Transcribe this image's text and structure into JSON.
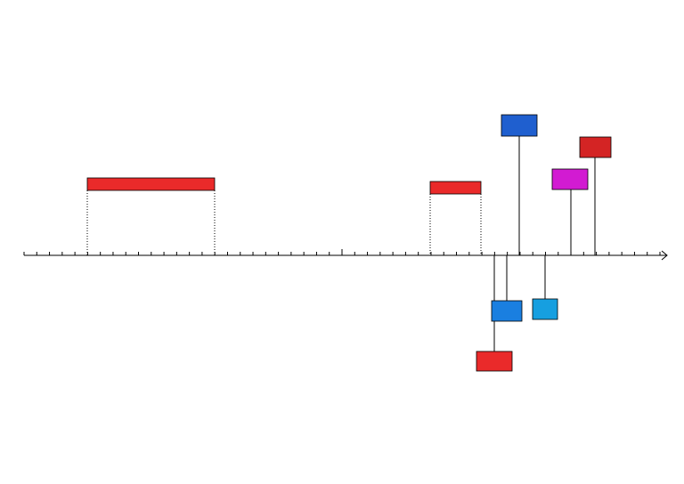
{
  "spans": [
    {
      "color": "#ea2a2a"
    },
    {
      "color": "#ea2a2a"
    }
  ],
  "events": [
    {
      "color": "#1f5fcf"
    },
    {
      "color": "#d42424"
    },
    {
      "color": "#d21bd2"
    },
    {
      "color": "#1a7fe0"
    },
    {
      "color": "#ea2a2a"
    },
    {
      "color": "#169fe0"
    }
  ]
}
